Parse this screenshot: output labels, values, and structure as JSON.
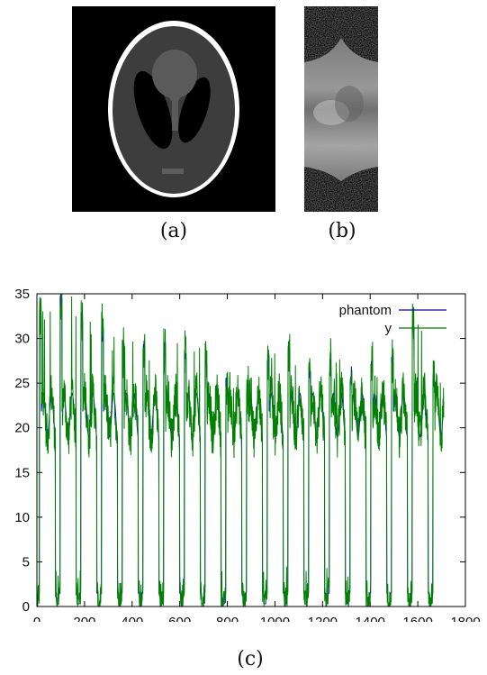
{
  "captions": {
    "a": "(a)",
    "b": "(b)",
    "c": "(c)"
  },
  "chart_data": {
    "type": "line",
    "title": "",
    "xlabel": "",
    "ylabel": "",
    "xlim": [
      0,
      1800
    ],
    "ylim": [
      0,
      35
    ],
    "xticks": [
      0,
      200,
      400,
      600,
      800,
      1000,
      1200,
      1400,
      1600,
      1800
    ],
    "yticks": [
      0,
      5,
      10,
      15,
      20,
      25,
      30,
      35
    ],
    "x_count": 1710,
    "period": 87,
    "peaks": [
      33.8,
      35.0,
      33.0,
      31.6,
      30.0,
      30.1,
      30.0,
      29.5,
      28.7,
      26.2,
      25.0,
      28.5,
      29.2,
      27.5,
      28.0,
      27.0,
      28.0,
      28.2,
      32.4,
      26.0
    ],
    "series": [
      {
        "name": "phantom",
        "color": "#0000dd"
      },
      {
        "name": "y",
        "color": "#008000"
      }
    ],
    "legend_position": "top-right",
    "grid": false
  }
}
